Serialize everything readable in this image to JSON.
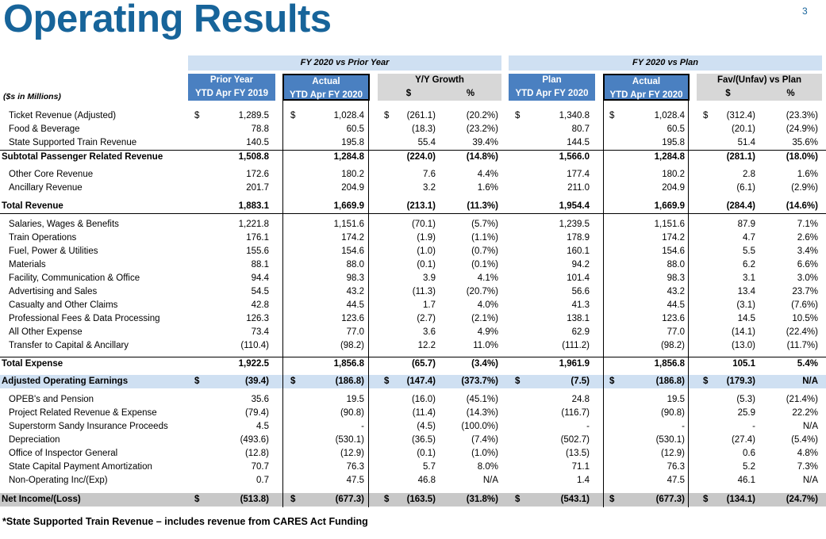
{
  "title": "Operating Results",
  "page_number": "3",
  "groups": {
    "prior_year": "FY 2020 vs Prior Year",
    "plan": "FY 2020 vs Plan"
  },
  "headers": {
    "units": "($s in Millions)",
    "prior": [
      "Prior Year",
      "YTD Apr FY 2019"
    ],
    "actual1": [
      "Actual",
      "YTD Apr FY 2020"
    ],
    "yy": [
      "Y/Y Growth",
      "$",
      "%"
    ],
    "plan": [
      "Plan",
      "YTD Apr FY 2020"
    ],
    "actual2": [
      "Actual",
      "YTD Apr FY 2020"
    ],
    "fav": [
      "Fav/(Unfav) vs Plan",
      "$",
      "%"
    ]
  },
  "rows": [
    {
      "label": "Ticket Revenue (Adjusted)",
      "values": [
        "1,289.5",
        "1,028.4",
        "(261.1)",
        "(20.2%)",
        "1,340.8",
        "1,028.4",
        "(312.4)",
        "(23.3%)"
      ],
      "dollars": [
        "$",
        "$",
        "$",
        "$",
        "$",
        "$"
      ]
    },
    {
      "label": "Food & Beverage",
      "values": [
        "78.8",
        "60.5",
        "(18.3)",
        "(23.2%)",
        "80.7",
        "60.5",
        "(20.1)",
        "(24.9%)"
      ]
    },
    {
      "label": "State Supported Train Revenue",
      "values": [
        "140.5",
        "195.8",
        "55.4",
        "39.4%",
        "144.5",
        "195.8",
        "51.4",
        "35.6%"
      ]
    },
    {
      "label": "Subtotal Passenger Related Revenue",
      "values": [
        "1,508.8",
        "1,284.8",
        "(224.0)",
        "(14.8%)",
        "1,566.0",
        "1,284.8",
        "(281.1)",
        "(18.0%)"
      ]
    },
    {
      "label": "Other Core Revenue",
      "values": [
        "172.6",
        "180.2",
        "7.6",
        "4.4%",
        "177.4",
        "180.2",
        "2.8",
        "1.6%"
      ]
    },
    {
      "label": "Ancillary Revenue",
      "values": [
        "201.7",
        "204.9",
        "3.2",
        "1.6%",
        "211.0",
        "204.9",
        "(6.1)",
        "(2.9%)"
      ]
    },
    {
      "label": "Total Revenue",
      "values": [
        "1,883.1",
        "1,669.9",
        "(213.1)",
        "(11.3%)",
        "1,954.4",
        "1,669.9",
        "(284.4)",
        "(14.6%)"
      ]
    },
    {
      "label": "Salaries, Wages & Benefits",
      "values": [
        "1,221.8",
        "1,151.6",
        "(70.1)",
        "(5.7%)",
        "1,239.5",
        "1,151.6",
        "87.9",
        "7.1%"
      ]
    },
    {
      "label": "Train Operations",
      "values": [
        "176.1",
        "174.2",
        "(1.9)",
        "(1.1%)",
        "178.9",
        "174.2",
        "4.7",
        "2.6%"
      ]
    },
    {
      "label": "Fuel, Power & Utilities",
      "values": [
        "155.6",
        "154.6",
        "(1.0)",
        "(0.7%)",
        "160.1",
        "154.6",
        "5.5",
        "3.4%"
      ]
    },
    {
      "label": "Materials",
      "values": [
        "88.1",
        "88.0",
        "(0.1)",
        "(0.1%)",
        "94.2",
        "88.0",
        "6.2",
        "6.6%"
      ]
    },
    {
      "label": "Facility, Communication & Office",
      "values": [
        "94.4",
        "98.3",
        "3.9",
        "4.1%",
        "101.4",
        "98.3",
        "3.1",
        "3.0%"
      ]
    },
    {
      "label": "Advertising and Sales",
      "values": [
        "54.5",
        "43.2",
        "(11.3)",
        "(20.7%)",
        "56.6",
        "43.2",
        "13.4",
        "23.7%"
      ]
    },
    {
      "label": "Casualty and Other Claims",
      "values": [
        "42.8",
        "44.5",
        "1.7",
        "4.0%",
        "41.3",
        "44.5",
        "(3.1)",
        "(7.6%)"
      ]
    },
    {
      "label": "Professional Fees & Data Processing",
      "values": [
        "126.3",
        "123.6",
        "(2.7)",
        "(2.1%)",
        "138.1",
        "123.6",
        "14.5",
        "10.5%"
      ]
    },
    {
      "label": "All Other Expense",
      "values": [
        "73.4",
        "77.0",
        "3.6",
        "4.9%",
        "62.9",
        "77.0",
        "(14.1)",
        "(22.4%)"
      ]
    },
    {
      "label": "Transfer to Capital & Ancillary",
      "values": [
        "(110.4)",
        "(98.2)",
        "12.2",
        "11.0%",
        "(111.2)",
        "(98.2)",
        "(13.0)",
        "(11.7%)"
      ]
    },
    {
      "label": "Total Expense",
      "values": [
        "1,922.5",
        "1,856.8",
        "(65.7)",
        "(3.4%)",
        "1,961.9",
        "1,856.8",
        "105.1",
        "5.4%"
      ]
    },
    {
      "label": "Adjusted Operating Earnings",
      "values": [
        "(39.4)",
        "(186.8)",
        "(147.4)",
        "(373.7%)",
        "(7.5)",
        "(186.8)",
        "(179.3)",
        "N/A"
      ],
      "dollars": [
        "$",
        "$",
        "$",
        "$",
        "$",
        "$"
      ]
    },
    {
      "label": "OPEB's and Pension",
      "values": [
        "35.6",
        "19.5",
        "(16.0)",
        "(45.1%)",
        "24.8",
        "19.5",
        "(5.3)",
        "(21.4%)"
      ]
    },
    {
      "label": "Project Related Revenue & Expense",
      "values": [
        "(79.4)",
        "(90.8)",
        "(11.4)",
        "(14.3%)",
        "(116.7)",
        "(90.8)",
        "25.9",
        "22.2%"
      ]
    },
    {
      "label": "Superstorm Sandy Insurance Proceeds",
      "values": [
        "4.5",
        "-",
        "(4.5)",
        "(100.0%)",
        "-",
        "-",
        "-",
        "N/A"
      ]
    },
    {
      "label": "Depreciation",
      "values": [
        "(493.6)",
        "(530.1)",
        "(36.5)",
        "(7.4%)",
        "(502.7)",
        "(530.1)",
        "(27.4)",
        "(5.4%)"
      ]
    },
    {
      "label": "Office of Inspector General",
      "values": [
        "(12.8)",
        "(12.9)",
        "(0.1)",
        "(1.0%)",
        "(13.5)",
        "(12.9)",
        "0.6",
        "4.8%"
      ]
    },
    {
      "label": "State Capital Payment Amortization",
      "values": [
        "70.7",
        "76.3",
        "5.7",
        "8.0%",
        "71.1",
        "76.3",
        "5.2",
        "7.3%"
      ]
    },
    {
      "label": "Non-Operating Inc/(Exp)",
      "values": [
        "0.7",
        "47.5",
        "46.8",
        "N/A",
        "1.4",
        "47.5",
        "46.1",
        "N/A"
      ]
    },
    {
      "label": "Net Income/(Loss)",
      "values": [
        "(513.8)",
        "(677.3)",
        "(163.5)",
        "(31.8%)",
        "(543.1)",
        "(677.3)",
        "(134.1)",
        "(24.7%)"
      ],
      "dollars": [
        "$",
        "$",
        "$",
        "$",
        "$",
        "$"
      ]
    }
  ],
  "footnote": "*State Supported Train Revenue – includes revenue from CARES Act Funding"
}
